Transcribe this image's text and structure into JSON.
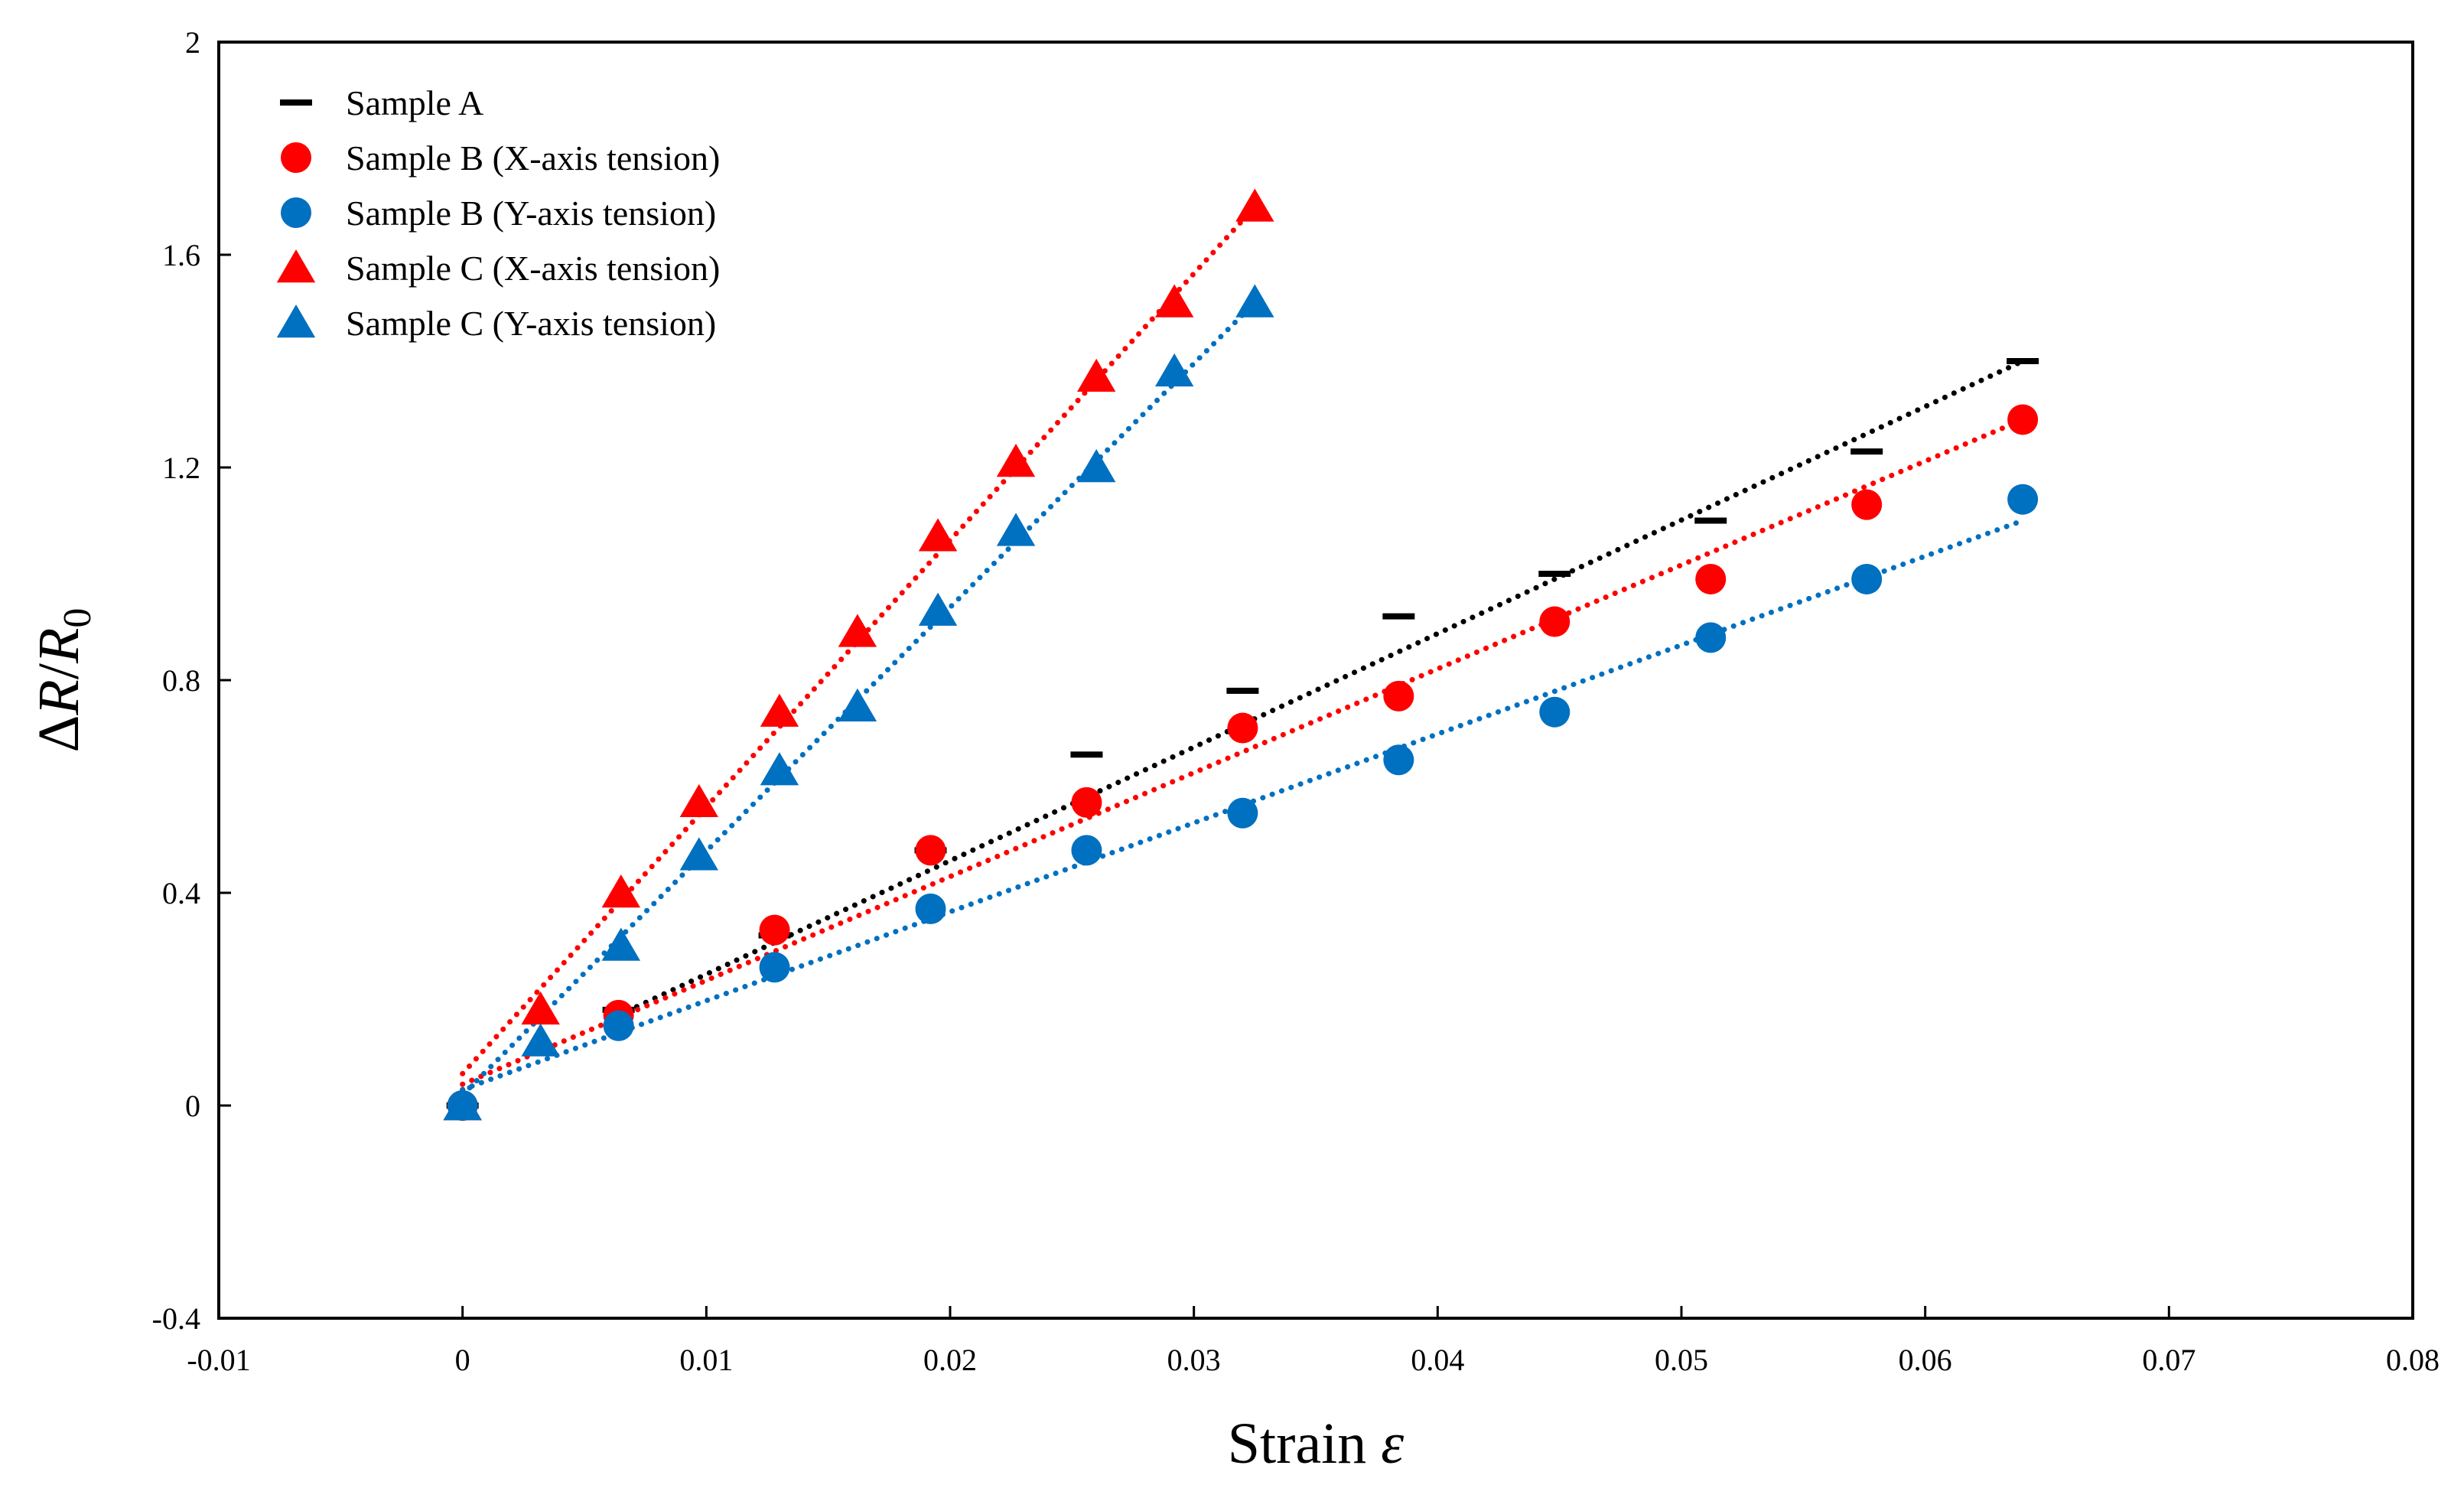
{
  "chart_data": {
    "type": "scatter",
    "title": "",
    "xlabel": "Strain",
    "xlabel_symbol": "ε",
    "ylabel_parts": [
      "Δ",
      "R",
      "/",
      "R",
      "0"
    ],
    "xlim": [
      -0.01,
      0.08
    ],
    "ylim": [
      -0.4,
      2.0
    ],
    "xticks": [
      -0.01,
      0,
      0.01,
      0.02,
      0.03,
      0.04,
      0.05,
      0.06,
      0.07,
      0.08
    ],
    "xtick_labels": [
      "-0.01",
      "0",
      "0.01",
      "0.02",
      "0.03",
      "0.04",
      "0.05",
      "0.06",
      "0.07",
      "0.08"
    ],
    "yticks": [
      -0.4,
      0,
      0.4,
      0.8,
      1.2,
      1.6,
      2.0
    ],
    "ytick_labels": [
      "-0.4",
      "0",
      "0.4",
      "0.8",
      "1.2",
      "1.6",
      "2"
    ],
    "grid": false,
    "legend_position": "top-left",
    "series": [
      {
        "name": "Sample A",
        "marker": "dash",
        "color": "#000000",
        "x": [
          0,
          0.0064,
          0.0128,
          0.0192,
          0.0256,
          0.032,
          0.0384,
          0.0448,
          0.0512,
          0.0576,
          0.064
        ],
        "y": [
          0,
          0.18,
          0.32,
          0.48,
          0.66,
          0.78,
          0.92,
          1.0,
          1.1,
          1.23,
          1.4
        ],
        "trend": [
          [
            0.0064,
            0.17
          ],
          [
            0.064,
            1.4
          ]
        ]
      },
      {
        "name": "Sample B (X-axis tension)",
        "marker": "circle",
        "color": "#ff0000",
        "x": [
          0,
          0.0064,
          0.0128,
          0.0192,
          0.0256,
          0.032,
          0.0384,
          0.0448,
          0.0512,
          0.0576,
          0.064
        ],
        "y": [
          0,
          0.17,
          0.33,
          0.48,
          0.57,
          0.71,
          0.77,
          0.91,
          0.99,
          1.13,
          1.29
        ],
        "trend": [
          [
            0.0,
            0.04
          ],
          [
            0.064,
            1.29
          ]
        ]
      },
      {
        "name": "Sample B (Y-axis tension)",
        "marker": "circle",
        "color": "#0070c0",
        "x": [
          0,
          0.0064,
          0.0128,
          0.0192,
          0.0256,
          0.032,
          0.0384,
          0.0448,
          0.0512,
          0.0576,
          0.064
        ],
        "y": [
          0,
          0.15,
          0.26,
          0.37,
          0.48,
          0.55,
          0.65,
          0.74,
          0.88,
          0.99,
          1.14
        ],
        "trend": [
          [
            0.0,
            0.03
          ],
          [
            0.064,
            1.1
          ]
        ]
      },
      {
        "name": "Sample C (X-axis tension)",
        "marker": "triangle",
        "color": "#ff0000",
        "x": [
          0,
          0.0032,
          0.0065,
          0.0097,
          0.013,
          0.0162,
          0.0195,
          0.0227,
          0.026,
          0.0292,
          0.0325
        ],
        "y": [
          0,
          0.18,
          0.4,
          0.57,
          0.74,
          0.89,
          1.07,
          1.21,
          1.37,
          1.51,
          1.69
        ],
        "trend": [
          [
            0.0,
            0.06
          ],
          [
            0.0325,
            1.69
          ]
        ]
      },
      {
        "name": "Sample C (Y-axis tension)",
        "marker": "triangle",
        "color": "#0070c0",
        "x": [
          0,
          0.0032,
          0.0065,
          0.0097,
          0.013,
          0.0162,
          0.0195,
          0.0227,
          0.026,
          0.0292,
          0.0325
        ],
        "y": [
          0,
          0.12,
          0.3,
          0.47,
          0.63,
          0.75,
          0.93,
          1.08,
          1.2,
          1.38,
          1.51
        ],
        "trend": [
          [
            0.0,
            0.02
          ],
          [
            0.0325,
            1.51
          ]
        ]
      }
    ]
  }
}
